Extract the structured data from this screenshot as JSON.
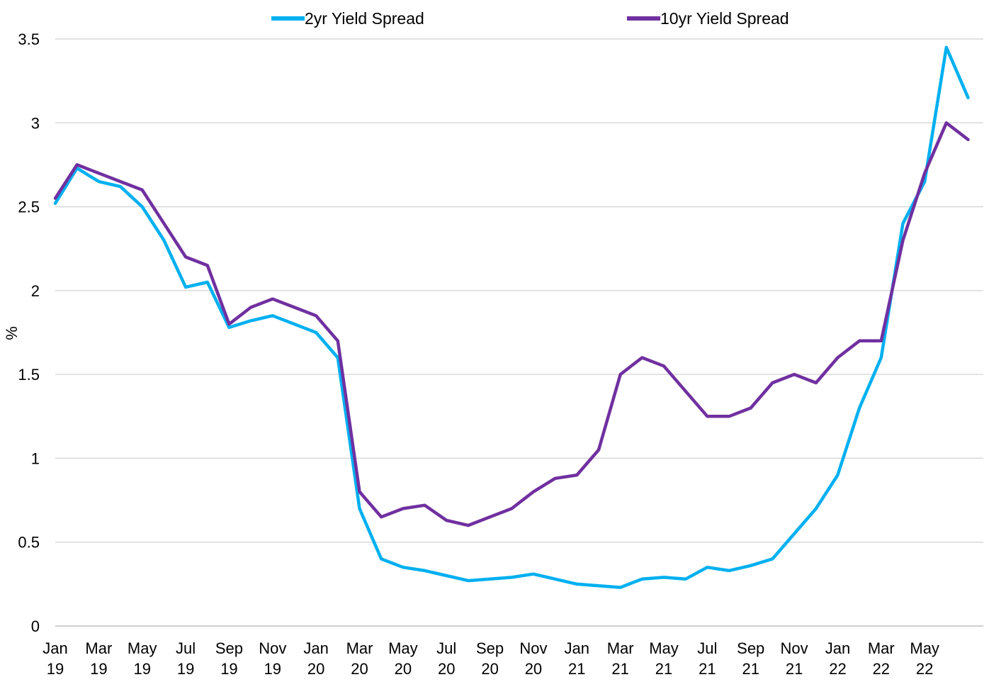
{
  "chart_data": {
    "type": "line",
    "title": "",
    "xlabel": "",
    "ylabel": "%",
    "ylim": [
      0,
      3.5
    ],
    "yticks": [
      "0",
      "0.5",
      "1",
      "1.5",
      "2",
      "2.5",
      "3",
      "3.5"
    ],
    "xticks": [
      {
        "month": "Jan",
        "year": "19"
      },
      {
        "month": "Mar",
        "year": "19"
      },
      {
        "month": "May",
        "year": "19"
      },
      {
        "month": "Jul",
        "year": "19"
      },
      {
        "month": "Sep",
        "year": "19"
      },
      {
        "month": "Nov",
        "year": "19"
      },
      {
        "month": "Jan",
        "year": "20"
      },
      {
        "month": "Mar",
        "year": "20"
      },
      {
        "month": "May",
        "year": "20"
      },
      {
        "month": "Jul",
        "year": "20"
      },
      {
        "month": "Sep",
        "year": "20"
      },
      {
        "month": "Nov",
        "year": "20"
      },
      {
        "month": "Jan",
        "year": "21"
      },
      {
        "month": "Mar",
        "year": "21"
      },
      {
        "month": "May",
        "year": "21"
      },
      {
        "month": "Jul",
        "year": "21"
      },
      {
        "month": "Sep",
        "year": "21"
      },
      {
        "month": "Nov",
        "year": "21"
      },
      {
        "month": "Jan",
        "year": "22"
      },
      {
        "month": "Mar",
        "year": "22"
      },
      {
        "month": "May",
        "year": "22"
      }
    ],
    "grid": "horizontal",
    "legend_position": "top",
    "series": [
      {
        "name": "2yr Yield Spread",
        "color": "#00B0F0",
        "x": [
          "2019-01",
          "2019-02",
          "2019-03",
          "2019-04",
          "2019-05",
          "2019-06",
          "2019-07",
          "2019-08",
          "2019-09",
          "2019-10",
          "2019-11",
          "2019-12",
          "2020-01",
          "2020-02",
          "2020-03",
          "2020-04",
          "2020-05",
          "2020-06",
          "2020-07",
          "2020-08",
          "2020-09",
          "2020-10",
          "2020-11",
          "2020-12",
          "2021-01",
          "2021-02",
          "2021-03",
          "2021-04",
          "2021-05",
          "2021-06",
          "2021-07",
          "2021-08",
          "2021-09",
          "2021-10",
          "2021-11",
          "2021-12",
          "2022-01",
          "2022-02",
          "2022-03",
          "2022-04",
          "2022-05",
          "2022-06",
          "2022-07"
        ],
        "values": [
          2.52,
          2.73,
          2.65,
          2.62,
          2.5,
          2.3,
          2.02,
          2.05,
          1.78,
          1.82,
          1.85,
          1.8,
          1.75,
          1.6,
          0.7,
          0.4,
          0.35,
          0.33,
          0.3,
          0.27,
          0.28,
          0.29,
          0.31,
          0.28,
          0.25,
          0.24,
          0.23,
          0.28,
          0.29,
          0.28,
          0.35,
          0.33,
          0.36,
          0.4,
          0.55,
          0.7,
          0.9,
          1.3,
          1.6,
          2.4,
          2.65,
          3.45,
          3.15
        ]
      },
      {
        "name": "10yr Yield Spread",
        "color": "#7030A0",
        "x": [
          "2019-01",
          "2019-02",
          "2019-03",
          "2019-04",
          "2019-05",
          "2019-06",
          "2019-07",
          "2019-08",
          "2019-09",
          "2019-10",
          "2019-11",
          "2019-12",
          "2020-01",
          "2020-02",
          "2020-03",
          "2020-04",
          "2020-05",
          "2020-06",
          "2020-07",
          "2020-08",
          "2020-09",
          "2020-10",
          "2020-11",
          "2020-12",
          "2021-01",
          "2021-02",
          "2021-03",
          "2021-04",
          "2021-05",
          "2021-06",
          "2021-07",
          "2021-08",
          "2021-09",
          "2021-10",
          "2021-11",
          "2021-12",
          "2022-01",
          "2022-02",
          "2022-03",
          "2022-04",
          "2022-05",
          "2022-06",
          "2022-07"
        ],
        "values": [
          2.55,
          2.75,
          2.7,
          2.65,
          2.6,
          2.4,
          2.2,
          2.15,
          1.8,
          1.9,
          1.95,
          1.9,
          1.85,
          1.7,
          0.8,
          0.65,
          0.7,
          0.72,
          0.63,
          0.6,
          0.65,
          0.7,
          0.8,
          0.88,
          0.9,
          1.05,
          1.5,
          1.6,
          1.55,
          1.4,
          1.25,
          1.25,
          1.3,
          1.45,
          1.5,
          1.45,
          1.6,
          1.7,
          1.7,
          2.3,
          2.7,
          3.0,
          2.9
        ]
      }
    ]
  }
}
